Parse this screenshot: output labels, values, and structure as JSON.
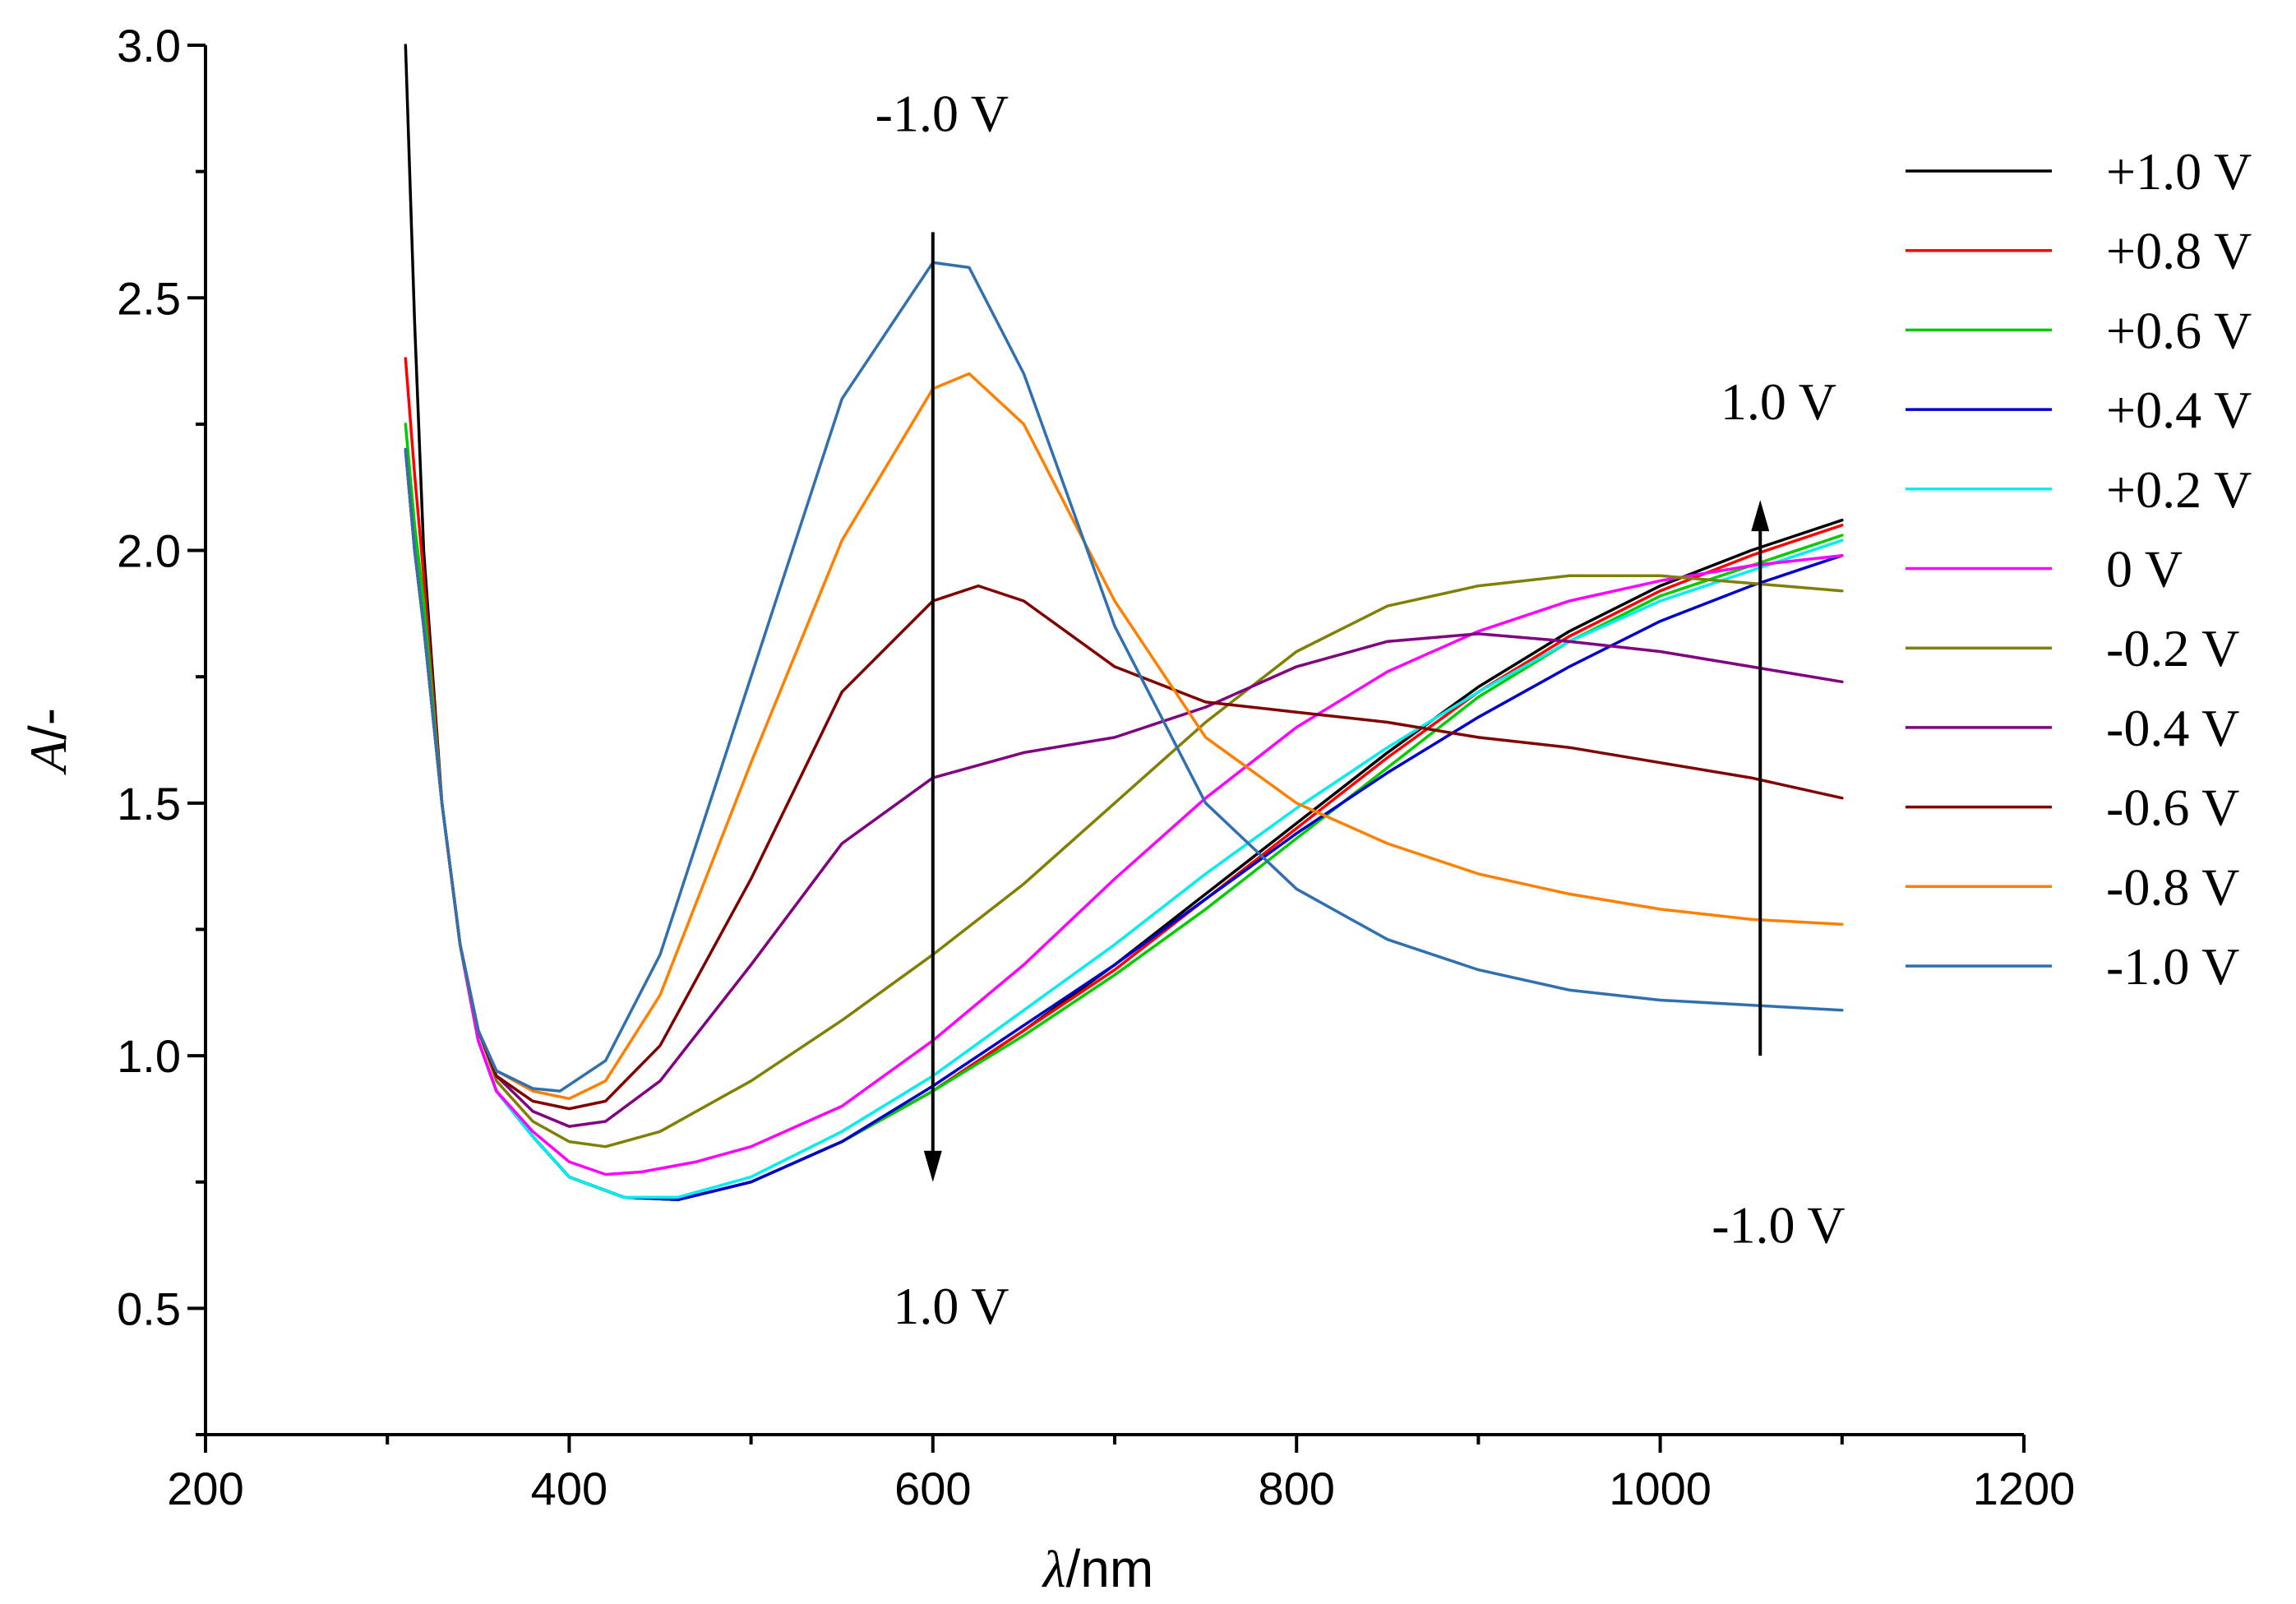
{
  "chart_data": {
    "type": "line",
    "title": "",
    "xlabel": {
      "symbol": "λ",
      "unit": "nm"
    },
    "ylabel": {
      "symbol": "A",
      "unit": "-"
    },
    "xlim": [
      200,
      1200
    ],
    "ylim": [
      0.25,
      3.0
    ],
    "x_ticks": [
      200,
      400,
      600,
      800,
      1000,
      1200
    ],
    "y_ticks": [
      0.5,
      1.0,
      1.5,
      2.0,
      2.5,
      3.0
    ],
    "x_tick_labels": [
      "200",
      "400",
      "600",
      "800",
      "1000",
      "1200"
    ],
    "y_tick_labels": [
      "0.5",
      "1.0",
      "1.5",
      "2.0",
      "2.5",
      "3.0"
    ],
    "grid": false,
    "legend_position": "top-right",
    "annotations": [
      {
        "text": "-1.0 V",
        "x": 605,
        "y": 2.83
      },
      {
        "text": "1.0 V",
        "x": 610,
        "y": 0.47
      },
      {
        "text": "1.0 V",
        "x": 1065,
        "y": 2.26
      },
      {
        "text": "-1.0 V",
        "x": 1065,
        "y": 0.63
      }
    ],
    "arrows": [
      {
        "x": 600,
        "y_from": 2.63,
        "y_to": 0.75
      },
      {
        "x": 1055,
        "y_from": 1.0,
        "y_to": 2.1
      }
    ],
    "series": [
      {
        "name": "+1.0 V",
        "color": "#000000",
        "x": [
          310,
          315,
          320,
          330,
          340,
          350,
          360,
          380,
          400,
          430,
          460,
          500,
          550,
          600,
          650,
          700,
          750,
          800,
          850,
          900,
          950,
          1000,
          1050,
          1100
        ],
        "y": [
          3.0,
          2.45,
          2.0,
          1.5,
          1.22,
          1.03,
          0.93,
          0.84,
          0.76,
          0.72,
          0.715,
          0.75,
          0.83,
          0.93,
          1.05,
          1.18,
          1.32,
          1.46,
          1.6,
          1.73,
          1.84,
          1.93,
          2.0,
          2.06
        ]
      },
      {
        "name": "+0.8 V",
        "color": "#ff0000",
        "x": [
          310,
          315,
          320,
          330,
          340,
          350,
          360,
          380,
          400,
          430,
          460,
          500,
          550,
          600,
          650,
          700,
          750,
          800,
          850,
          900,
          950,
          1000,
          1050,
          1100
        ],
        "y": [
          2.38,
          2.15,
          1.95,
          1.5,
          1.22,
          1.03,
          0.93,
          0.84,
          0.76,
          0.72,
          0.715,
          0.75,
          0.83,
          0.93,
          1.05,
          1.17,
          1.31,
          1.45,
          1.59,
          1.72,
          1.83,
          1.92,
          1.99,
          2.05
        ]
      },
      {
        "name": "+0.6 V",
        "color": "#00cc00",
        "x": [
          310,
          315,
          320,
          330,
          340,
          350,
          360,
          380,
          400,
          430,
          460,
          500,
          550,
          600,
          650,
          700,
          750,
          800,
          850,
          900,
          950,
          1000,
          1050,
          1100
        ],
        "y": [
          2.25,
          2.05,
          1.9,
          1.5,
          1.22,
          1.03,
          0.93,
          0.84,
          0.76,
          0.72,
          0.715,
          0.75,
          0.83,
          0.93,
          1.04,
          1.16,
          1.29,
          1.43,
          1.57,
          1.71,
          1.82,
          1.91,
          1.97,
          2.03
        ]
      },
      {
        "name": "+0.4 V",
        "color": "#0000cc",
        "x": [
          310,
          315,
          320,
          330,
          340,
          350,
          360,
          380,
          400,
          430,
          460,
          500,
          550,
          600,
          650,
          700,
          750,
          800,
          850,
          900,
          950,
          1000,
          1050,
          1100
        ],
        "y": [
          2.2,
          2.0,
          1.85,
          1.5,
          1.22,
          1.03,
          0.93,
          0.84,
          0.76,
          0.72,
          0.715,
          0.75,
          0.83,
          0.94,
          1.06,
          1.18,
          1.31,
          1.44,
          1.56,
          1.67,
          1.77,
          1.86,
          1.93,
          1.99
        ]
      },
      {
        "name": "+0.2 V",
        "color": "#00eeee",
        "x": [
          310,
          315,
          320,
          330,
          340,
          350,
          360,
          380,
          400,
          430,
          460,
          500,
          550,
          600,
          650,
          700,
          750,
          800,
          850,
          900,
          950,
          1000,
          1050,
          1100
        ],
        "y": [
          2.2,
          2.0,
          1.85,
          1.5,
          1.22,
          1.03,
          0.93,
          0.84,
          0.76,
          0.72,
          0.72,
          0.76,
          0.85,
          0.96,
          1.09,
          1.22,
          1.36,
          1.49,
          1.61,
          1.72,
          1.82,
          1.9,
          1.96,
          2.02
        ]
      },
      {
        "name": "0 V",
        "color": "#ff00ff",
        "x": [
          310,
          315,
          320,
          330,
          340,
          350,
          360,
          380,
          400,
          420,
          440,
          470,
          500,
          550,
          600,
          650,
          700,
          750,
          800,
          850,
          900,
          950,
          1000,
          1050,
          1100
        ],
        "y": [
          2.2,
          2.0,
          1.85,
          1.5,
          1.22,
          1.03,
          0.93,
          0.85,
          0.79,
          0.765,
          0.77,
          0.79,
          0.82,
          0.9,
          1.03,
          1.18,
          1.35,
          1.51,
          1.65,
          1.76,
          1.84,
          1.9,
          1.94,
          1.97,
          1.99
        ]
      },
      {
        "name": "-0.2 V",
        "color": "#808000",
        "x": [
          310,
          315,
          320,
          330,
          340,
          350,
          360,
          380,
          400,
          420,
          450,
          500,
          550,
          600,
          650,
          700,
          750,
          800,
          850,
          900,
          950,
          1000,
          1050,
          1100
        ],
        "y": [
          2.2,
          2.0,
          1.85,
          1.5,
          1.22,
          1.05,
          0.95,
          0.87,
          0.83,
          0.82,
          0.85,
          0.95,
          1.07,
          1.2,
          1.34,
          1.5,
          1.66,
          1.8,
          1.89,
          1.93,
          1.95,
          1.95,
          1.935,
          1.92
        ]
      },
      {
        "name": "-0.4 V",
        "color": "#800080",
        "x": [
          310,
          315,
          320,
          330,
          340,
          350,
          360,
          380,
          400,
          420,
          450,
          500,
          550,
          600,
          650,
          700,
          750,
          800,
          850,
          900,
          950,
          1000,
          1050,
          1100
        ],
        "y": [
          2.2,
          2.0,
          1.85,
          1.5,
          1.22,
          1.05,
          0.96,
          0.89,
          0.86,
          0.87,
          0.95,
          1.18,
          1.42,
          1.55,
          1.6,
          1.63,
          1.69,
          1.77,
          1.82,
          1.835,
          1.82,
          1.8,
          1.77,
          1.74
        ]
      },
      {
        "name": "-0.6 V",
        "color": "#800000",
        "x": [
          310,
          315,
          320,
          330,
          340,
          350,
          360,
          380,
          400,
          420,
          450,
          500,
          550,
          600,
          625,
          650,
          700,
          750,
          800,
          850,
          900,
          950,
          1000,
          1050,
          1100
        ],
        "y": [
          2.2,
          2.0,
          1.85,
          1.5,
          1.22,
          1.05,
          0.96,
          0.91,
          0.895,
          0.91,
          1.02,
          1.35,
          1.72,
          1.9,
          1.93,
          1.9,
          1.77,
          1.7,
          1.68,
          1.66,
          1.63,
          1.61,
          1.58,
          1.55,
          1.51
        ]
      },
      {
        "name": "-0.8 V",
        "color": "#ff8000",
        "x": [
          310,
          315,
          320,
          330,
          340,
          350,
          360,
          380,
          400,
          420,
          450,
          500,
          550,
          600,
          620,
          650,
          700,
          750,
          800,
          850,
          900,
          950,
          1000,
          1050,
          1100
        ],
        "y": [
          2.2,
          2.0,
          1.85,
          1.5,
          1.22,
          1.05,
          0.97,
          0.93,
          0.915,
          0.95,
          1.12,
          1.58,
          2.02,
          2.32,
          2.35,
          2.25,
          1.9,
          1.63,
          1.5,
          1.42,
          1.36,
          1.32,
          1.29,
          1.27,
          1.26
        ]
      },
      {
        "name": "-1.0 V",
        "color": "#3070b0",
        "x": [
          310,
          315,
          320,
          330,
          340,
          350,
          360,
          380,
          395,
          420,
          450,
          500,
          550,
          600,
          620,
          650,
          700,
          750,
          800,
          850,
          900,
          950,
          1000,
          1050,
          1100
        ],
        "y": [
          2.2,
          2.0,
          1.85,
          1.5,
          1.22,
          1.05,
          0.97,
          0.935,
          0.93,
          0.99,
          1.2,
          1.75,
          2.3,
          2.57,
          2.56,
          2.35,
          1.85,
          1.5,
          1.33,
          1.23,
          1.17,
          1.13,
          1.11,
          1.1,
          1.09
        ]
      }
    ]
  }
}
